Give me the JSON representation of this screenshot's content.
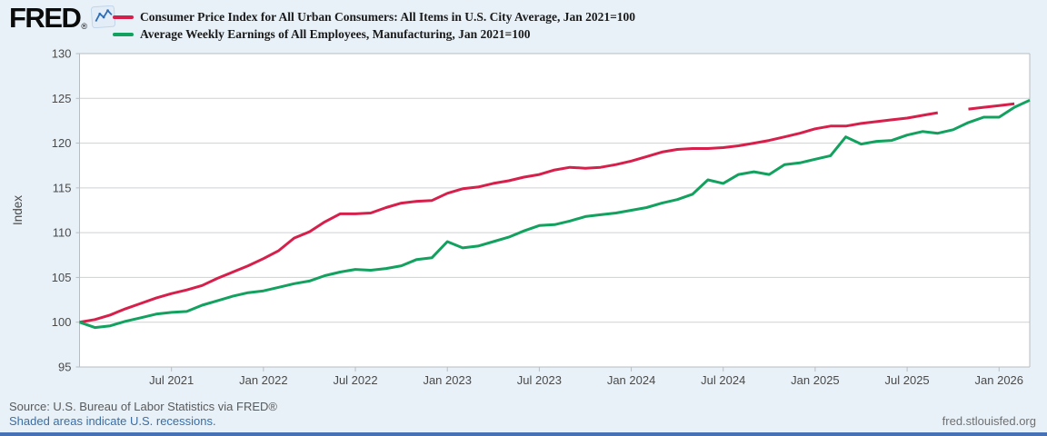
{
  "header": {
    "logo_text": "FRED",
    "logo_reg": "®"
  },
  "footer": {
    "source": "Source: U.S. Bureau of Labor Statistics via FRED®",
    "recession_note": "Shaded areas indicate U.S. recessions.",
    "site_link": "fred.stlouisfed.org"
  },
  "colors": {
    "page_background": "#e8f1f8",
    "plot_background": "#ffffff",
    "gridline": "#cfd1d3",
    "axis_border": "#b9bdc1",
    "tick_text": "#4a4a4a",
    "cpi_red": "#d6204b",
    "earnings_green": "#12a15e",
    "link_blue": "#3a6ea5",
    "accent_bar_blue": "#4671b4"
  },
  "chart_data": {
    "type": "line",
    "title": "",
    "xlabel": "",
    "ylabel": "Index",
    "ylim": [
      95,
      130
    ],
    "yticks": [
      95,
      100,
      105,
      110,
      115,
      120,
      125,
      130
    ],
    "grid": true,
    "legend_position": "top-left",
    "x_start": "2021-01",
    "x_end": "2026-03",
    "x_months_total": 63,
    "x_frequency": "monthly",
    "xticks": [
      {
        "m": 6,
        "label": "Jul 2021"
      },
      {
        "m": 12,
        "label": "Jan 2022"
      },
      {
        "m": 18,
        "label": "Jul 2022"
      },
      {
        "m": 24,
        "label": "Jan 2023"
      },
      {
        "m": 30,
        "label": "Jul 2023"
      },
      {
        "m": 36,
        "label": "Jan 2024"
      },
      {
        "m": 42,
        "label": "Jul 2024"
      },
      {
        "m": 48,
        "label": "Jan 2025"
      },
      {
        "m": 54,
        "label": "Jul 2025"
      },
      {
        "m": 60,
        "label": "Jan 2026"
      }
    ],
    "series": [
      {
        "name": "Consumer Price Index for All Urban Consumers: All Items in U.S. City Average, Jan 2021=100",
        "color": "#d6204b",
        "note": "one-month data gap in Oct 2025",
        "values": [
          100.0,
          100.3,
          100.8,
          101.5,
          102.1,
          102.7,
          103.2,
          103.6,
          104.1,
          104.9,
          105.6,
          106.3,
          107.1,
          108.0,
          109.4,
          110.1,
          111.2,
          112.1,
          112.1,
          112.2,
          112.8,
          113.3,
          113.5,
          113.6,
          114.4,
          114.9,
          115.1,
          115.5,
          115.8,
          116.2,
          116.5,
          117.0,
          117.3,
          117.2,
          117.3,
          117.6,
          118.0,
          118.5,
          119.0,
          119.3,
          119.4,
          119.4,
          119.5,
          119.7,
          120.0,
          120.3,
          120.7,
          121.1,
          121.6,
          121.9,
          121.9,
          122.2,
          122.4,
          122.6,
          122.8,
          123.1,
          123.4,
          null,
          123.8,
          124.0,
          124.2,
          124.4
        ]
      },
      {
        "name": "Average Weekly Earnings of All Employees, Manufacturing, Jan 2021=100",
        "color": "#12a15e",
        "values": [
          100.0,
          99.4,
          99.6,
          100.1,
          100.5,
          100.9,
          101.1,
          101.2,
          101.9,
          102.4,
          102.9,
          103.3,
          103.5,
          103.9,
          104.3,
          104.6,
          105.2,
          105.6,
          105.9,
          105.8,
          106.0,
          106.3,
          107.0,
          107.2,
          109.0,
          108.3,
          108.5,
          109.0,
          109.5,
          110.2,
          110.8,
          110.9,
          111.3,
          111.8,
          112.0,
          112.2,
          112.5,
          112.8,
          113.3,
          113.7,
          114.3,
          115.9,
          115.5,
          116.5,
          116.8,
          116.5,
          117.6,
          117.8,
          118.2,
          118.6,
          120.7,
          119.9,
          120.2,
          120.3,
          120.9,
          121.3,
          121.1,
          121.5,
          122.3,
          122.9,
          122.9,
          124.0,
          124.8
        ]
      }
    ]
  }
}
